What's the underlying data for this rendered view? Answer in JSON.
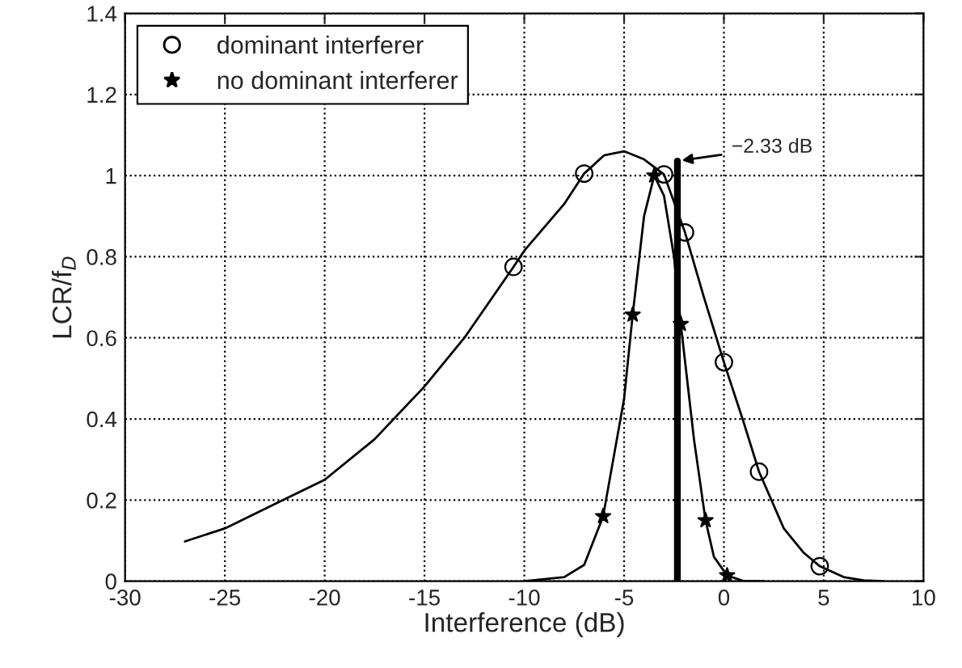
{
  "chart_data": {
    "type": "line",
    "xlabel": "Interference (dB)",
    "ylabel": "LCR/f$_{D}$",
    "xlim": [
      -30,
      10
    ],
    "ylim": [
      0,
      1.4
    ],
    "xticks": [
      -30,
      -25,
      -20,
      -15,
      -10,
      -5,
      0,
      5,
      10
    ],
    "yticks": [
      0,
      0.2,
      0.4,
      0.6,
      0.8,
      1,
      1.2,
      1.4
    ],
    "grid": true,
    "legend": "top left",
    "line_style": "solid",
    "series": [
      {
        "color": "#000000",
        "x": [
          -27,
          -25,
          -22.5,
          -20,
          -17.5,
          -15,
          -13,
          -10.54,
          -10,
          -8,
          -7,
          -6,
          -5,
          -4,
          -3,
          -1.95,
          -1,
          0,
          1,
          1.76,
          3,
          4,
          4.8,
          6,
          7,
          8
        ],
        "values": [
          0.098,
          0.13,
          0.19,
          0.25,
          0.35,
          0.48,
          0.6,
          0.775,
          0.815,
          0.93,
          1.005,
          1.05,
          1.06,
          1.04,
          1.003,
          0.86,
          0.7,
          0.54,
          0.39,
          0.27,
          0.13,
          0.07,
          0.037,
          0.01,
          0.002,
          0
        ]
      },
      {
        "color": "#000000",
        "x": [
          -10,
          -8,
          -7,
          -6.05,
          -5,
          -4.57,
          -4,
          -3.49,
          -3,
          -2.5,
          -2.16,
          -1.5,
          -0.92,
          -0.5,
          0.16,
          1,
          2
        ],
        "values": [
          0,
          0.01,
          0.04,
          0.16,
          0.45,
          0.657,
          0.9,
          1.0,
          0.95,
          0.8,
          0.634,
          0.35,
          0.15,
          0.06,
          0.014,
          0,
          0
        ]
      },
      {
        "type": "scatter",
        "name": "dominant interferer",
        "color": "#000000",
        "marker": "circle",
        "x": [
          -10.54,
          -7,
          -3,
          -1.95,
          0,
          1.76,
          4.8
        ],
        "values": [
          0.775,
          1.005,
          1.003,
          0.86,
          0.54,
          0.27,
          0.037
        ]
      },
      {
        "type": "scatter",
        "name": "no dominant interferer",
        "color": "#000000",
        "marker": "star",
        "x": [
          -6.05,
          -4.57,
          -3.49,
          -2.16,
          -0.92,
          0.16
        ],
        "values": [
          0.16,
          0.657,
          1.0,
          0.634,
          0.15,
          0.014
        ]
      }
    ],
    "ref_lines": [
      {
        "axis": "x",
        "value": -2.33,
        "label": "−2.33 dB",
        "color": "#000000"
      }
    ]
  }
}
